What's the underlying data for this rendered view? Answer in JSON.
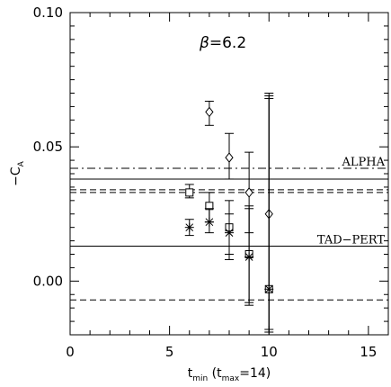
{
  "chart_data": {
    "type": "scatter",
    "xlim": [
      0,
      16
    ],
    "ylim": [
      -0.02,
      0.1
    ],
    "x_ticks": [
      0,
      5,
      10,
      15
    ],
    "y_ticks": [
      0.0,
      0.05,
      0.1
    ],
    "x_tick_labels": [
      "0",
      "5",
      "10",
      "15"
    ],
    "y_tick_labels": [
      "0.00",
      "0.05",
      "0.10"
    ],
    "xlabel": {
      "main": "t",
      "sub": "min",
      "paren_open": " (t",
      "paren_sub": "max",
      "paren_close": "=14)"
    },
    "ylabel": {
      "main": "−C",
      "sub": "A"
    },
    "annotation": {
      "symbol": "β",
      "text": "=6.2"
    },
    "series": [
      {
        "marker": "diamond",
        "points": [
          {
            "x": 7,
            "y": 0.063,
            "err_lo": 0.058,
            "err_hi": 0.067
          },
          {
            "x": 8,
            "y": 0.046,
            "err_lo": 0.038,
            "err_hi": 0.055
          },
          {
            "x": 9,
            "y": 0.033,
            "err_lo": 0.018,
            "err_hi": 0.048
          },
          {
            "x": 10,
            "y": 0.025,
            "err_lo": -0.02,
            "err_hi": 0.07
          }
        ]
      },
      {
        "marker": "square",
        "points": [
          {
            "x": 6,
            "y": 0.033,
            "err_lo": 0.031,
            "err_hi": 0.036
          },
          {
            "x": 7,
            "y": 0.028,
            "err_lo": 0.022,
            "err_hi": 0.033
          },
          {
            "x": 8,
            "y": 0.02,
            "err_lo": 0.01,
            "err_hi": 0.03
          },
          {
            "x": 9,
            "y": 0.01,
            "err_lo": -0.008,
            "err_hi": 0.028
          },
          {
            "x": 10,
            "y": -0.003,
            "err_lo": -0.018,
            "err_hi": 0.068
          }
        ]
      },
      {
        "marker": "asterisk",
        "points": [
          {
            "x": 6,
            "y": 0.02,
            "err_lo": 0.017,
            "err_hi": 0.023
          },
          {
            "x": 7,
            "y": 0.022,
            "err_lo": 0.018,
            "err_hi": 0.027
          },
          {
            "x": 8,
            "y": 0.018,
            "err_lo": 0.008,
            "err_hi": 0.025
          },
          {
            "x": 9,
            "y": 0.009,
            "err_lo": -0.009,
            "err_hi": 0.027
          },
          {
            "x": 10,
            "y": -0.003,
            "err_lo": -0.019,
            "err_hi": 0.069
          }
        ]
      }
    ],
    "hlines": [
      {
        "y": 0.042,
        "style": "dashdot",
        "label": "ALPHA"
      },
      {
        "y": 0.038,
        "style": "solid",
        "label": ""
      },
      {
        "y": 0.034,
        "style": "dashed",
        "label": ""
      },
      {
        "y": 0.033,
        "style": "dashed",
        "label": ""
      },
      {
        "y": 0.013,
        "style": "solid",
        "label": "TAD−PERT"
      },
      {
        "y": -0.007,
        "style": "dashed",
        "label": ""
      }
    ],
    "grid": false,
    "legend": "none"
  }
}
